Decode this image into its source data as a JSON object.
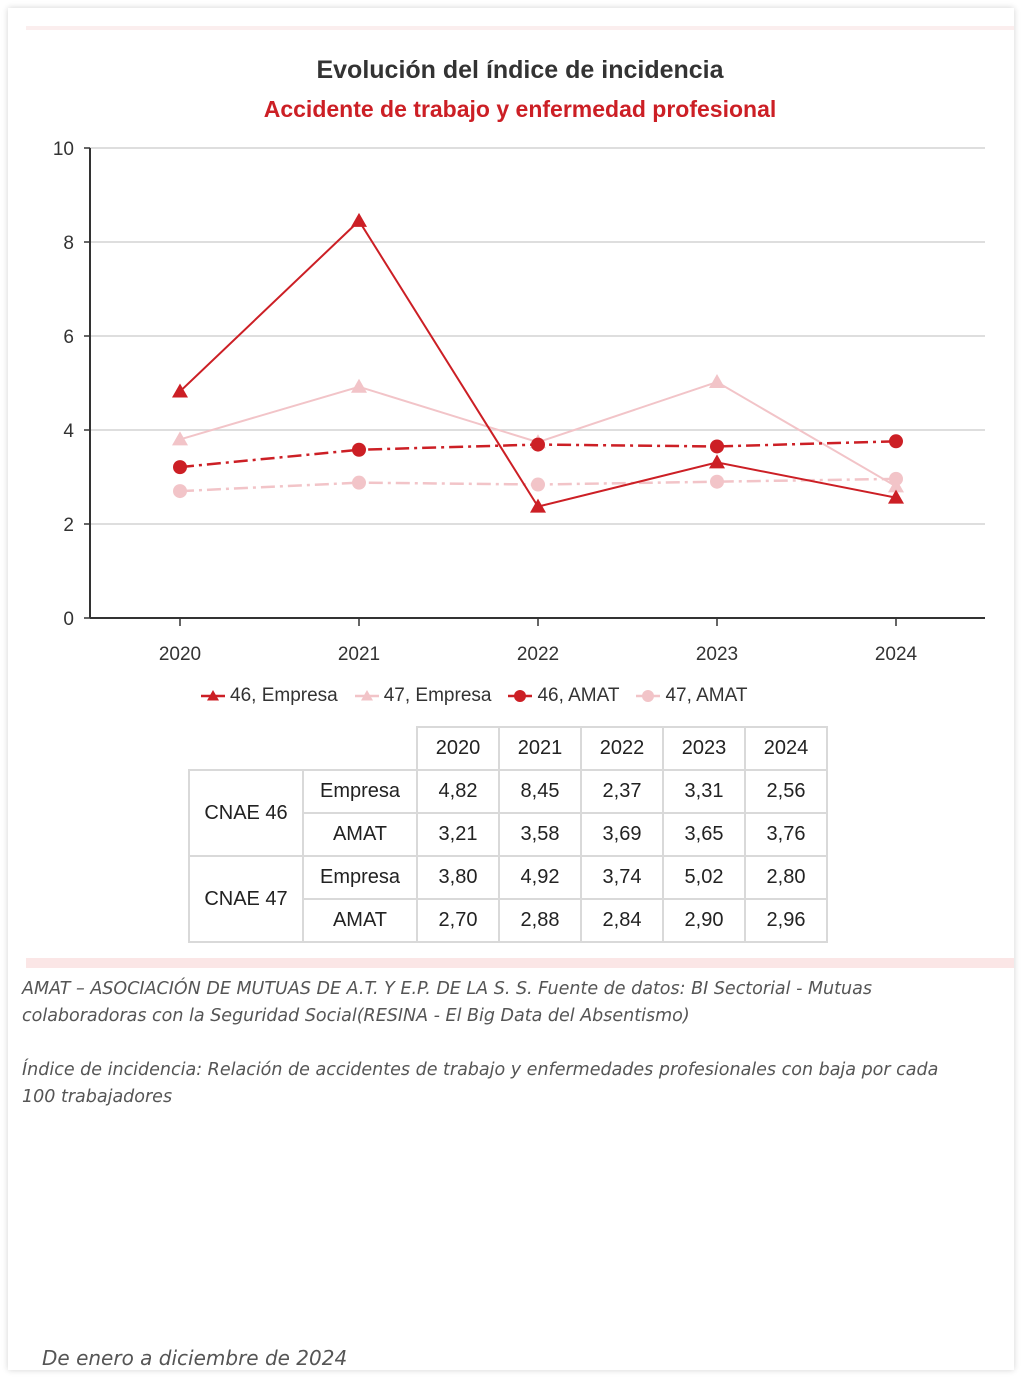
{
  "chart_data": {
    "type": "line",
    "title": "Evolución del índice de incidencia",
    "subtitle": "Accidente de trabajo y enfermedad profesional",
    "categories": [
      "2020",
      "2021",
      "2022",
      "2023",
      "2024"
    ],
    "ylim": [
      0,
      10
    ],
    "yticks": [
      0,
      2,
      4,
      6,
      8,
      10
    ],
    "grid": true,
    "legend_position": "bottom",
    "series": [
      {
        "name": "46, Empresa",
        "values": [
          4.82,
          8.45,
          2.37,
          3.31,
          2.56
        ],
        "color": "#cc1f25",
        "marker": "triangle",
        "dash": "solid"
      },
      {
        "name": "47, Empresa",
        "values": [
          3.8,
          4.92,
          3.74,
          5.02,
          2.8
        ],
        "color": "#f2c4c8",
        "marker": "triangle",
        "dash": "solid"
      },
      {
        "name": "46, AMAT",
        "values": [
          3.21,
          3.58,
          3.69,
          3.65,
          3.76
        ],
        "color": "#cc1f25",
        "marker": "circle",
        "dash": "dashdot"
      },
      {
        "name": "47, AMAT",
        "values": [
          2.7,
          2.88,
          2.84,
          2.9,
          2.96
        ],
        "color": "#f2c4c8",
        "marker": "circle",
        "dash": "dashdot"
      }
    ]
  },
  "table": {
    "years": [
      "2020",
      "2021",
      "2022",
      "2023",
      "2024"
    ],
    "groups": [
      {
        "label": "CNAE 46",
        "rows": [
          {
            "label": "Empresa",
            "values": [
              "4,82",
              "8,45",
              "2,37",
              "3,31",
              "2,56"
            ]
          },
          {
            "label": "AMAT",
            "values": [
              "3,21",
              "3,58",
              "3,69",
              "3,65",
              "3,76"
            ]
          }
        ]
      },
      {
        "label": "CNAE 47",
        "rows": [
          {
            "label": "Empresa",
            "values": [
              "3,80",
              "4,92",
              "3,74",
              "5,02",
              "2,80"
            ]
          },
          {
            "label": "AMAT",
            "values": [
              "2,70",
              "2,88",
              "2,84",
              "2,90",
              "2,96"
            ]
          }
        ]
      }
    ]
  },
  "notes": {
    "source_line1": "AMAT – ASOCIACIÓN DE MUTUAS DE A.T. Y E.P. DE LA S. S. Fuente de datos: BI Sectorial - Mutuas",
    "source_line2": "colaboradoras con la Seguridad Social(RESINA - El Big Data del Absentismo)",
    "definition_line1": "Índice de incidencia: Relación de accidentes de trabajo y enfermedades profesionales con baja por cada",
    "definition_line2": "100 trabajadores",
    "period": "De enero a diciembre de 2024"
  }
}
